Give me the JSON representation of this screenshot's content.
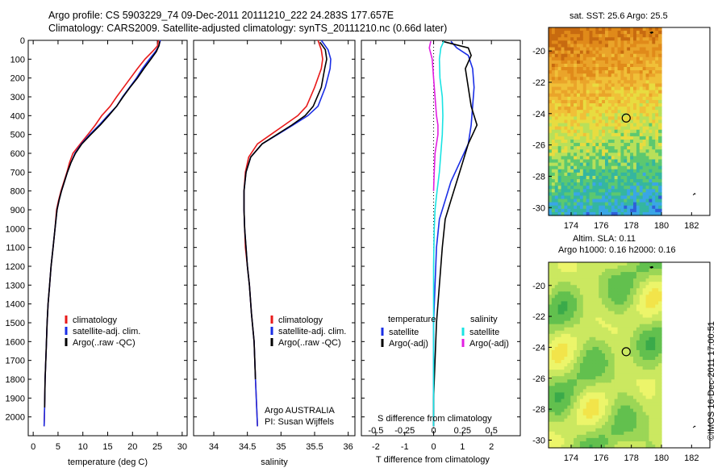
{
  "header": {
    "line1": "Argo profile: CS 5903229_74 09-Dec-2011 20111210_222 24.283S 177.657E",
    "line2": "Climatology: CARS2009. Satellite-adjusted climatology: synTS_20111210.nc (0.66d later)"
  },
  "sst_map": {
    "title": "sat. SST: 25.6 Argo: 25.5",
    "lat_ticks": [
      "-20",
      "-22",
      "-24",
      "-26",
      "-28",
      "-30"
    ],
    "lon_ticks": [
      "174",
      "176",
      "178",
      "180",
      "182"
    ],
    "marker": {
      "lon": 177.657,
      "lat": -24.283
    },
    "colors": {
      "warm": "#e8961e",
      "mid": "#f2d83c",
      "cool": "#3cb96a",
      "cold": "#2f60d8"
    }
  },
  "sla_map": {
    "title1": "Altim. SLA: 0.11",
    "title2": "Argo h1000: 0.16 h2000: 0.16",
    "lat_ticks": [
      "-20",
      "-22",
      "-24",
      "-26",
      "-28",
      "-30"
    ],
    "lon_ticks": [
      "174",
      "176",
      "178",
      "180",
      "182"
    ],
    "marker": {
      "lon": 177.657,
      "lat": -24.283
    },
    "colors": {
      "light": "#ecf56a",
      "mid": "#b9e35a",
      "dark": "#46b548"
    }
  },
  "panel_text": {
    "argo_agency": "Argo AUSTRALIA",
    "pi": "PI: Susan Wijffels",
    "s_diff_label": "S difference from climatology",
    "t_diff_label": "T difference from climatology",
    "temperature_head": "temperature",
    "salinity_head": "salinity"
  },
  "stamp": "©IMOS 16-Dec-2011 17:00:51",
  "chart_data": [
    {
      "type": "line",
      "xlabel": "temperature (deg C)",
      "ylabel": "",
      "xlim": [
        -1,
        31
      ],
      "ylim": [
        2100,
        0
      ],
      "xticks": [
        "0",
        "5",
        "10",
        "15",
        "20",
        "25",
        "30"
      ],
      "yticks": [
        "0",
        "100",
        "200",
        "300",
        "400",
        "500",
        "600",
        "700",
        "800",
        "900",
        "1000",
        "1100",
        "1200",
        "1300",
        "1400",
        "1500",
        "1600",
        "1700",
        "1800",
        "1900",
        "2000"
      ],
      "legend": [
        "climatology",
        "satellite-adj. clim.",
        "Argo(..raw -QC)"
      ],
      "legend_placement": "lower-center",
      "series": [
        {
          "name": "climatology",
          "color": "#e81a1a",
          "x": [
            25.2,
            25.0,
            24.0,
            22.5,
            21.0,
            19.6,
            18.2,
            16.8,
            15.5,
            13.8,
            12.5,
            11.0,
            9.5,
            8.0,
            7.3,
            6.8,
            6.2,
            5.6,
            5.1,
            4.7,
            4.4,
            4.0,
            3.6,
            3.3,
            3.0,
            2.8,
            2.6,
            2.4,
            2.3,
            2.2
          ],
          "y": [
            0,
            30,
            60,
            100,
            150,
            200,
            250,
            300,
            350,
            400,
            450,
            500,
            550,
            600,
            650,
            700,
            750,
            800,
            850,
            900,
            1000,
            1100,
            1200,
            1300,
            1400,
            1500,
            1650,
            1800,
            1950,
            2050
          ]
        },
        {
          "name": "satellite-adj. clim.",
          "color": "#1a2ee6",
          "x": [
            25.6,
            25.3,
            24.6,
            23.4,
            22.0,
            20.8,
            19.4,
            18.0,
            16.8,
            15.0,
            13.3,
            11.4,
            9.7,
            8.4,
            7.6,
            6.9,
            6.3,
            5.7,
            5.2,
            4.8,
            4.4,
            4.0,
            3.6,
            3.3,
            3.0,
            2.8,
            2.6,
            2.4,
            2.3,
            2.2
          ],
          "y": [
            0,
            30,
            60,
            100,
            150,
            200,
            250,
            300,
            350,
            400,
            450,
            500,
            550,
            600,
            650,
            700,
            750,
            800,
            850,
            900,
            1000,
            1100,
            1200,
            1300,
            1400,
            1500,
            1650,
            1800,
            1950,
            2050
          ]
        },
        {
          "name": "Argo(..raw -QC)",
          "color": "#000000",
          "x": [
            25.5,
            25.3,
            24.8,
            23.7,
            22.3,
            21.0,
            19.5,
            18.1,
            16.8,
            15.2,
            13.5,
            11.6,
            9.8,
            8.5,
            7.6,
            6.9,
            6.3,
            5.7,
            5.2,
            4.8,
            4.4,
            4.0,
            3.6,
            3.3,
            3.0,
            2.8,
            2.6,
            2.4,
            2.3
          ],
          "y": [
            5,
            30,
            60,
            100,
            150,
            200,
            250,
            300,
            350,
            400,
            450,
            500,
            550,
            600,
            650,
            700,
            750,
            800,
            850,
            900,
            1000,
            1100,
            1200,
            1300,
            1400,
            1500,
            1650,
            1800,
            1950
          ]
        }
      ]
    },
    {
      "type": "line",
      "xlabel": "salinity",
      "ylabel": "",
      "xlim": [
        33.7,
        36.1
      ],
      "ylim": [
        2100,
        0
      ],
      "xticks": [
        "34",
        "34.5",
        "35",
        "35.5",
        "36"
      ],
      "legend": [
        "climatology",
        "satellite-adj. clim.",
        "Argo(..raw -QC)"
      ],
      "legend_placement": "lower-center",
      "series": [
        {
          "name": "climatology",
          "color": "#e81a1a",
          "x": [
            35.55,
            35.6,
            35.62,
            35.6,
            35.5,
            35.38,
            35.25,
            35.05,
            34.85,
            34.65,
            34.52,
            34.47,
            34.45,
            34.45,
            34.46,
            34.47,
            34.5,
            34.53,
            34.56,
            34.6,
            34.62,
            34.65
          ],
          "y": [
            0,
            50,
            100,
            150,
            250,
            350,
            400,
            450,
            500,
            550,
            620,
            700,
            800,
            900,
            1000,
            1100,
            1200,
            1300,
            1450,
            1600,
            1800,
            2050
          ]
        },
        {
          "name": "satellite-adj. clim.",
          "color": "#1a2ee6",
          "x": [
            35.6,
            35.7,
            35.74,
            35.73,
            35.66,
            35.55,
            35.4,
            35.18,
            34.95,
            34.72,
            34.55,
            34.48,
            34.45,
            34.45,
            34.46,
            34.48,
            34.5,
            34.53,
            34.56,
            34.6,
            34.62,
            34.65
          ],
          "y": [
            0,
            50,
            100,
            150,
            250,
            350,
            400,
            450,
            500,
            550,
            620,
            700,
            800,
            900,
            1000,
            1100,
            1200,
            1300,
            1450,
            1600,
            1800,
            2050
          ]
        },
        {
          "name": "Argo(..raw -QC)",
          "color": "#000000",
          "x": [
            35.58,
            35.66,
            35.68,
            35.65,
            35.6,
            35.48,
            35.36,
            35.16,
            34.94,
            34.72,
            34.55,
            34.48,
            34.45,
            34.45,
            34.46,
            34.48,
            34.5,
            34.53,
            34.56,
            34.6,
            34.62
          ],
          "y": [
            10,
            50,
            100,
            150,
            250,
            350,
            400,
            450,
            500,
            550,
            620,
            700,
            800,
            900,
            1000,
            1100,
            1200,
            1300,
            1450,
            1600,
            1800
          ]
        }
      ]
    },
    {
      "type": "line",
      "xlabel": "T difference from climatology",
      "ylabel": "",
      "xlim": [
        -2.5,
        3
      ],
      "ylim": [
        2100,
        0
      ],
      "xticks": [
        "-2",
        "-1",
        "0",
        "1",
        "2"
      ],
      "xticks_top": [
        "-0.5",
        "-0.25",
        "0",
        "0.25",
        "0.5"
      ],
      "legend": [
        "satellite",
        "Argo(-adj)",
        "satellite",
        "Argo(-adj)"
      ],
      "legend_placement": "lower-center",
      "series": [
        {
          "name": "satellite",
          "color": "#1a2ee6",
          "variable": "temperature",
          "x": [
            0.6,
            0.8,
            1.2,
            1.35,
            1.4,
            1.35,
            1.3,
            1.2,
            0.9,
            0.6,
            0.4,
            0.2,
            0.1,
            0.05,
            0.0,
            0.0,
            0.0,
            0.0
          ],
          "y": [
            5,
            40,
            80,
            150,
            250,
            350,
            450,
            550,
            650,
            750,
            850,
            950,
            1100,
            1300,
            1500,
            1700,
            1900,
            2050
          ]
        },
        {
          "name": "Argo(-adj)",
          "color": "#000000",
          "variable": "temperature",
          "x": [
            0.3,
            1.2,
            1.3,
            1.1,
            1.2,
            1.3,
            1.5,
            1.2,
            1.0,
            0.8,
            0.6,
            0.4,
            0.3,
            0.2,
            0.1,
            0.05,
            0.0,
            0.0
          ],
          "y": [
            5,
            40,
            80,
            150,
            250,
            350,
            450,
            550,
            650,
            750,
            850,
            950,
            1100,
            1300,
            1500,
            1700,
            1900,
            2050
          ]
        },
        {
          "name": "satellite",
          "color": "#19e3e3",
          "variable": "salinity",
          "x": [
            0.35,
            0.25,
            0.2,
            0.22,
            0.3,
            0.32,
            0.3,
            0.25,
            0.2,
            0.12,
            0.05,
            0.02,
            0.0,
            0.0,
            0.0,
            0.0
          ],
          "y": [
            5,
            40,
            100,
            200,
            300,
            400,
            500,
            600,
            700,
            800,
            900,
            1000,
            1200,
            1500,
            1800,
            2050
          ]
        },
        {
          "name": "Argo(-adj)",
          "color": "#e21ee2",
          "variable": "salinity",
          "x": [
            -0.1,
            -0.15,
            -0.05,
            0.0,
            0.05,
            0.1,
            0.15,
            0.15,
            0.1,
            0.05,
            0.02,
            0.0
          ],
          "y": [
            5,
            40,
            100,
            200,
            300,
            400,
            450,
            500,
            550,
            600,
            700,
            800
          ]
        }
      ]
    }
  ]
}
